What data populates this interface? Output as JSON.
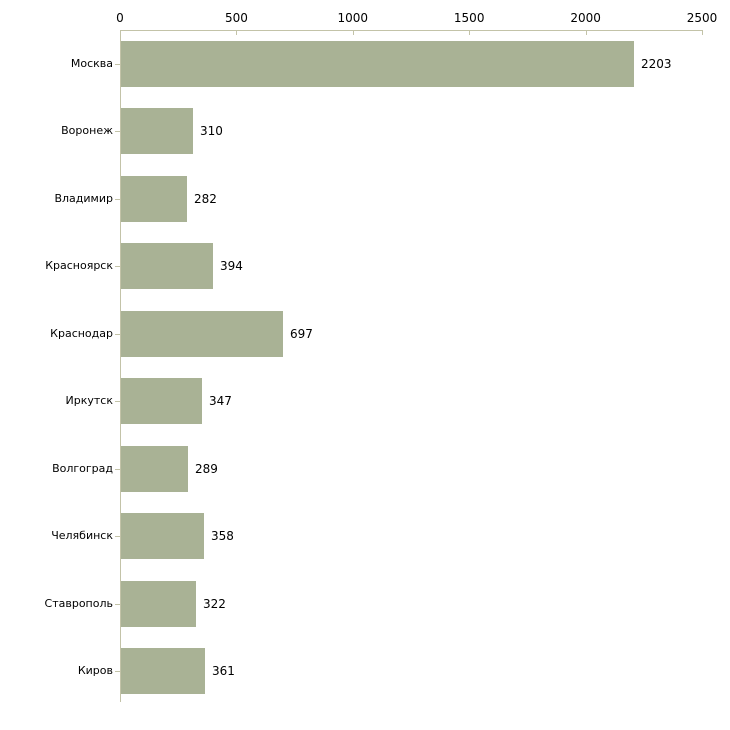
{
  "chart_data": {
    "type": "bar",
    "orientation": "horizontal",
    "title": "",
    "xlabel": "",
    "ylabel": "",
    "categories": [
      "Москва",
      "Воронеж",
      "Владимир",
      "Красноярск",
      "Краснодар",
      "Иркутск",
      "Волгоград",
      "Челябинск",
      "Ставрополь",
      "Киров"
    ],
    "values": [
      2203,
      310,
      282,
      394,
      697,
      347,
      289,
      358,
      322,
      361
    ],
    "value_labels": [
      "2203",
      "310",
      "282",
      "394",
      "697",
      "347",
      "289",
      "358",
      "322",
      "361"
    ],
    "xlim": [
      0,
      2500
    ],
    "x_ticks": [
      0,
      500,
      1000,
      1500,
      2000,
      2500
    ],
    "x_tick_labels": [
      "0",
      "500",
      "1000",
      "1500",
      "2000",
      "2500"
    ],
    "axis_position": "top",
    "grid": false,
    "legend": false,
    "bar_color": "#a9b295",
    "axis_color": "#c3c3a8",
    "text_color": "#000000",
    "background_color": "#ffffff"
  }
}
